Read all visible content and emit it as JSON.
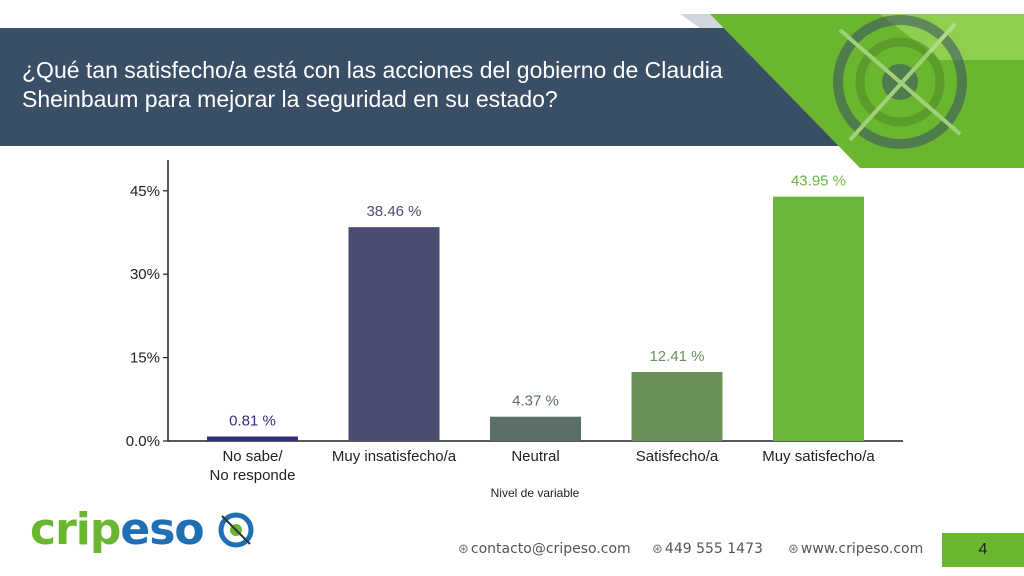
{
  "title": "¿Qué tan satisfecho/a está con las acciones del gobierno de Claudia Sheinbaum para mejorar la seguridad en su estado?",
  "brand": {
    "logo_green": "crip",
    "logo_blue": "eso",
    "green": "#6ab62e",
    "blue": "#1f6fb5",
    "navy": "#3a4e66"
  },
  "footer": {
    "email": "contacto@cripeso.com",
    "phone": "449 555 1473",
    "web": "www.cripeso.com",
    "page": "4"
  },
  "chart_data": {
    "type": "bar",
    "xlabel": "Nivel de variable",
    "ylabel": "",
    "ylim": [
      0,
      50
    ],
    "yticks": [
      0,
      15,
      30,
      45
    ],
    "ytick_labels": [
      "0.0%",
      "15%",
      "30%",
      "45%"
    ],
    "categories": [
      "No sabe/\nNo responde",
      "Muy insatisfecho/a",
      "Neutral",
      "Satisfecho/a",
      "Muy satisfecho/a"
    ],
    "values": [
      0.81,
      38.46,
      4.37,
      12.41,
      43.95
    ],
    "value_labels": [
      "0.81 %",
      "38.46 %",
      "4.37 %",
      "12.41 %",
      "43.95 %"
    ],
    "colors": [
      "#2e2f7f",
      "#4a4d72",
      "#5c6e68",
      "#6a9158",
      "#6ab63c"
    ],
    "grid": false
  }
}
